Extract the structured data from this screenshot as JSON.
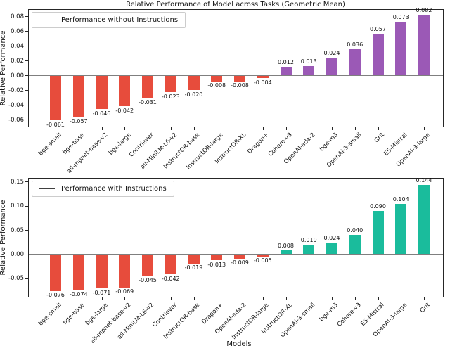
{
  "figure": {
    "title": "Relative Performance of Model across Tasks (Geometric Mean)",
    "xlabel": "Models"
  },
  "chart_data": [
    {
      "type": "bar",
      "name": "performance-without-instructions",
      "legend": "Performance without Instructions",
      "legend_position": "upper left",
      "ylabel": "Relative Performance",
      "grid": false,
      "ylim": [
        -0.0695,
        0.089
      ],
      "yticks": [
        "0.08",
        "0.06",
        "0.04",
        "0.02",
        "0.00",
        "-0.02",
        "-0.04",
        "-0.06"
      ],
      "categories": [
        "bge-small",
        "bge-base",
        "all-mpnet-base-v2",
        "bge-large",
        "Contriever",
        "all-MiniLM-L6-v2",
        "InstructOR-base",
        "InstructOR-large",
        "InstructOR-XL",
        "Dragon+",
        "Cohere-v3",
        "OpenAI-ada-2",
        "bge-m3",
        "OpenAI-3-small",
        "Grit",
        "E5-Mistral",
        "OpenAI-3-large"
      ],
      "values": [
        -0.061,
        -0.057,
        -0.046,
        -0.042,
        -0.031,
        -0.023,
        -0.02,
        -0.008,
        -0.008,
        -0.004,
        0.012,
        0.013,
        0.024,
        0.036,
        0.057,
        0.073,
        0.082
      ],
      "bar_colors": {
        "positive": "#9b59b6",
        "negative": "#e74c3c"
      }
    },
    {
      "type": "bar",
      "name": "performance-with-instructions",
      "legend": "Performance with Instructions",
      "legend_position": "upper left",
      "ylabel": "Relative Performance",
      "grid": false,
      "ylim": [
        -0.088,
        0.1565
      ],
      "yticks": [
        "0.15",
        "0.10",
        "0.05",
        "0.00",
        "-0.05"
      ],
      "categories": [
        "bge-small",
        "bge-base",
        "bge-large",
        "all-mpnet-base-v2",
        "all-MiniLM-L6-v2",
        "Contriever",
        "InstructOR-base",
        "Dragon+",
        "OpenAI-ada-2",
        "InstructOR-large",
        "InstructOR-XL",
        "OpenAI-3-small",
        "bge-m3",
        "Cohere-v3",
        "E5-Mistral",
        "OpenAI-3-large",
        "Grit"
      ],
      "values": [
        -0.076,
        -0.074,
        -0.071,
        -0.069,
        -0.045,
        -0.042,
        -0.019,
        -0.013,
        -0.009,
        -0.005,
        0.008,
        0.019,
        0.024,
        0.04,
        0.09,
        0.104,
        0.144
      ],
      "bar_colors": {
        "positive": "#1abc9c",
        "negative": "#e74c3c"
      }
    }
  ],
  "style_colors": {
    "negative_bar": "#e74c3c",
    "positive_bar_top": "#9b59b6",
    "positive_bar_bottom": "#1abc9c",
    "zero_line": "#7f7f7f",
    "spine": "#262626",
    "legend_border": "#cccccc"
  }
}
